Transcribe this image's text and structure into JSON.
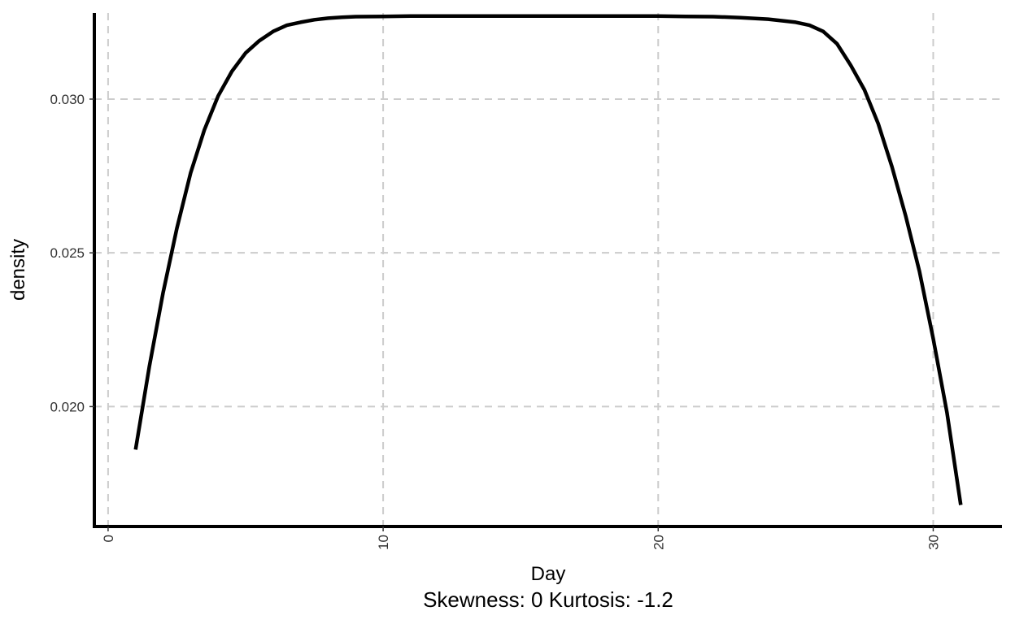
{
  "chart_data": {
    "type": "line",
    "xlabel": "Day",
    "ylabel": "density",
    "caption": "Skewness: 0 Kurtosis: -1.2",
    "xlim": [
      -0.5,
      32.5
    ],
    "ylim": [
      0.0161,
      0.0328
    ],
    "x_ticks": [
      0,
      10,
      20,
      30
    ],
    "y_ticks": [
      0.02,
      0.025,
      0.03
    ],
    "y_tick_labels": [
      "0.020",
      "0.025",
      "0.030"
    ],
    "grid": true,
    "series": [
      {
        "color": "#000000",
        "x": [
          1,
          1.5,
          2,
          2.5,
          3,
          3.5,
          4,
          4.5,
          5,
          5.5,
          6,
          6.5,
          7,
          7.5,
          8,
          8.5,
          9,
          10,
          11,
          12,
          13,
          14,
          15,
          16,
          17,
          18,
          19,
          20,
          21,
          22,
          23,
          24,
          24.5,
          25,
          25.5,
          26,
          26.5,
          27,
          27.5,
          28,
          28.5,
          29,
          29.5,
          30,
          30.5,
          31
        ],
        "y": [
          0.0186,
          0.0213,
          0.0237,
          0.0258,
          0.0276,
          0.029,
          0.0301,
          0.0309,
          0.0315,
          0.0319,
          0.0322,
          0.0324,
          0.0325,
          0.03258,
          0.03263,
          0.03266,
          0.03268,
          0.03269,
          0.0327,
          0.0327,
          0.0327,
          0.0327,
          0.0327,
          0.0327,
          0.0327,
          0.0327,
          0.0327,
          0.0327,
          0.03269,
          0.03268,
          0.03265,
          0.0326,
          0.03255,
          0.0325,
          0.0324,
          0.0322,
          0.0318,
          0.0311,
          0.0303,
          0.0292,
          0.0278,
          0.0262,
          0.0244,
          0.0222,
          0.0198,
          0.0168
        ]
      }
    ]
  }
}
